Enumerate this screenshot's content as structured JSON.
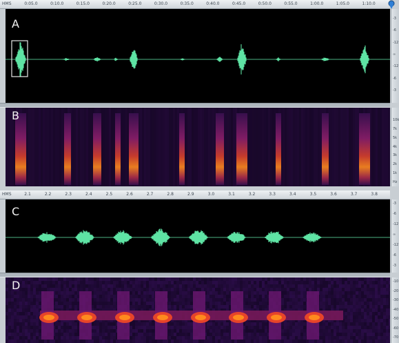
{
  "top_ruler": {
    "unit": "HMS",
    "ticks": [
      "0:05.0",
      "0:10.0",
      "0:15.0",
      "0:20.0",
      "0:25.0",
      "0:30.0",
      "0:35.0",
      "0:40.0",
      "0:45.0",
      "0:50.0",
      "0:55.0",
      "1:00.0",
      "1:05.0",
      "1:10.0"
    ]
  },
  "bottom_ruler": {
    "unit": "HMS",
    "ticks": [
      "2.1",
      "2.2",
      "2.3",
      "2.4",
      "2.5",
      "2.6",
      "2.7",
      "2.8",
      "2.9",
      "3.0",
      "3.1",
      "3.2",
      "3.3",
      "3.4",
      "3.5",
      "3.6",
      "3.7",
      "3.8"
    ]
  },
  "panels": {
    "a": {
      "letter": "A",
      "scale": [
        "-3",
        "-6",
        "-12",
        "∞",
        "-12",
        "-6",
        "-3"
      ]
    },
    "b": {
      "letter": "B",
      "scale": [
        "10k",
        "7k",
        "5k",
        "4k",
        "3k",
        "2k",
        "1k",
        "Hz"
      ]
    },
    "c": {
      "letter": "C",
      "scale": [
        "-3",
        "-6",
        "-12",
        "∞",
        "-12",
        "-6",
        "-3"
      ]
    },
    "d": {
      "letter": "D",
      "scale": [
        "-10",
        "-20",
        "-30",
        "-40",
        "-50",
        "-60",
        "-70"
      ]
    }
  },
  "colors": {
    "waveform": "#5ee3a4",
    "spectrogram_bg": "#120622",
    "spectrogram_hot": "#ff8a1e",
    "selection_box": "#e8e8e8"
  },
  "icons": {
    "marker": "pin-icon"
  }
}
